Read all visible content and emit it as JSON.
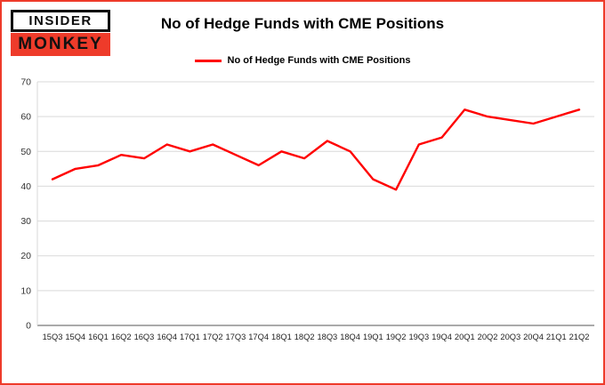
{
  "colors": {
    "border": "#ee3b2a",
    "logo_bg": "#ee3b2a",
    "line_red": "#ff0000",
    "grid": "#d9d9d9",
    "axis": "#545454"
  },
  "logo": {
    "line1": "INSIDER",
    "line2": "MONKEY"
  },
  "legend": {
    "label": "No of Hedge Funds with CME Positions"
  },
  "chart_data": {
    "type": "line",
    "title": "No of Hedge Funds with CME Positions",
    "xlabel": "",
    "ylabel": "",
    "categories": [
      "15Q3",
      "15Q4",
      "16Q1",
      "16Q2",
      "16Q3",
      "16Q4",
      "17Q1",
      "17Q2",
      "17Q3",
      "17Q4",
      "18Q1",
      "18Q2",
      "18Q3",
      "18Q4",
      "19Q1",
      "19Q2",
      "19Q3",
      "19Q4",
      "20Q1",
      "20Q2",
      "20Q3",
      "20Q4",
      "21Q1",
      "21Q2"
    ],
    "series": [
      {
        "name": "No of Hedge Funds with CME Positions",
        "color": "#ff0000",
        "values": [
          42,
          45,
          46,
          49,
          48,
          52,
          50,
          52,
          49,
          46,
          50,
          48,
          53,
          50,
          42,
          39,
          52,
          54,
          62,
          60,
          59,
          58,
          60,
          62
        ]
      }
    ],
    "ylim": [
      0,
      70
    ],
    "yticks": [
      0,
      10,
      20,
      30,
      40,
      50,
      60,
      70
    ],
    "grid": true,
    "legend_position": "top",
    "grid_color": "#d9d9d9",
    "axis_color": "#545454"
  }
}
